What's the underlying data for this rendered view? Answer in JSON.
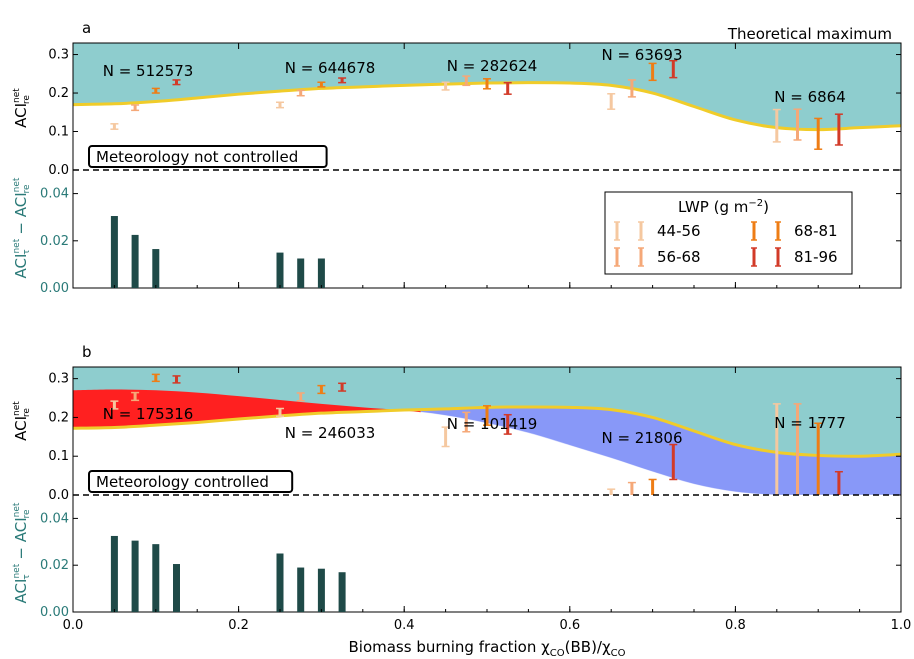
{
  "colors": {
    "teal_fill": "#8ecdce",
    "red_fill": "#ff2020",
    "blue_fill": "#8898f8",
    "theory_line": "#f0cc2a",
    "bars": "#1f4a48",
    "lower_axis_text": "#2a7a78",
    "lwp_colors": [
      "#f5c8a0",
      "#f5a878",
      "#ee7d15",
      "#d23a28"
    ]
  },
  "shared": {
    "xlabel": "Biomass burning fraction χ",
    "xlabel_sub1": "CO",
    "xlabel_mid": "(BB)/χ",
    "xlabel_sub2": "CO",
    "xticks": [
      "0.0",
      "0.2",
      "0.4",
      "0.6",
      "0.8",
      "1.0"
    ],
    "ylabel_top": "ACI",
    "ylabel_top_sup": "net",
    "ylabel_top_sub": "re",
    "ylabel_bottom_a": "ACI",
    "ylabel_bottom_a_sup": "net",
    "ylabel_bottom_a_sub": "τ",
    "ylabel_bottom_minus": " − ",
    "ylabel_bottom_b": "ACI",
    "ylabel_bottom_b_sup": "net",
    "ylabel_bottom_b_sub": "re"
  },
  "chart_data": [
    {
      "type": "errorbar",
      "panel_label": "a",
      "corner_text": "Theoretical maximum",
      "condition_label": "Meteorology not controlled",
      "top_ylim": [
        -0.035,
        0.33
      ],
      "top_yticks": [
        "0.0",
        "0.1",
        "0.2",
        "0.3"
      ],
      "theory_curve": {
        "x": [
          0,
          0.05,
          0.1,
          0.15,
          0.2,
          0.25,
          0.3,
          0.35,
          0.4,
          0.45,
          0.5,
          0.55,
          0.6,
          0.65,
          0.7,
          0.75,
          0.8,
          0.85,
          0.9,
          0.95,
          1.0
        ],
        "y": [
          0.17,
          0.172,
          0.178,
          0.187,
          0.197,
          0.205,
          0.212,
          0.216,
          0.22,
          0.223,
          0.226,
          0.227,
          0.226,
          0.22,
          0.2,
          0.165,
          0.13,
          0.11,
          0.105,
          0.11,
          0.115
        ]
      },
      "groups": [
        {
          "n_label": "N = 512573",
          "x": [
            0.05,
            0.075,
            0.1,
            0.125
          ],
          "y": [
            0.113,
            0.162,
            0.206,
            0.228
          ],
          "err": [
            0.007,
            0.007,
            0.006,
            0.006
          ]
        },
        {
          "n_label": "N = 644678",
          "x": [
            0.25,
            0.275,
            0.3,
            0.325
          ],
          "y": [
            0.169,
            0.2,
            0.222,
            0.233
          ],
          "err": [
            0.007,
            0.007,
            0.006,
            0.006
          ]
        },
        {
          "n_label": "N = 282624",
          "x": [
            0.45,
            0.475,
            0.5,
            0.525
          ],
          "y": [
            0.218,
            0.232,
            0.224,
            0.212
          ],
          "err": [
            0.01,
            0.012,
            0.013,
            0.015
          ]
        },
        {
          "n_label": "N = 63693",
          "x": [
            0.65,
            0.675,
            0.7,
            0.725
          ],
          "y": [
            0.178,
            0.212,
            0.255,
            0.262
          ],
          "err": [
            0.02,
            0.022,
            0.022,
            0.022
          ]
        },
        {
          "n_label": "N = 6864",
          "x": [
            0.85,
            0.875,
            0.9,
            0.925
          ],
          "y": [
            0.115,
            0.118,
            0.094,
            0.105
          ],
          "err": [
            0.042,
            0.04,
            0.04,
            0.04
          ]
        }
      ],
      "bottom_ylim": [
        0,
        0.05
      ],
      "bottom_yticks": [
        "0.00",
        "0.02",
        "0.04"
      ],
      "bottom_bars": {
        "x": [
          0.05,
          0.075,
          0.1,
          0.25,
          0.275,
          0.3
        ],
        "y": [
          0.0305,
          0.0225,
          0.0165,
          0.015,
          0.0125,
          0.0125
        ]
      },
      "legend": {
        "title": "LWP (g m",
        "title_sup": "−2",
        "title_end": ")",
        "entries": [
          "44-56",
          "56-68",
          "68-81",
          "81-96"
        ],
        "placement": "center-right"
      }
    },
    {
      "type": "errorbar",
      "panel_label": "b",
      "condition_label": "Meteorology controlled",
      "top_ylim": [
        -0.035,
        0.33
      ],
      "top_yticks": [
        "0.0",
        "0.1",
        "0.2",
        "0.3"
      ],
      "theory_curve": {
        "x": [
          0,
          0.05,
          0.1,
          0.15,
          0.2,
          0.25,
          0.3,
          0.35,
          0.4,
          0.45,
          0.5,
          0.55,
          0.6,
          0.65,
          0.7,
          0.75,
          0.8,
          0.85,
          0.9,
          0.95,
          1.0
        ],
        "y": [
          0.172,
          0.174,
          0.18,
          0.187,
          0.196,
          0.204,
          0.211,
          0.215,
          0.219,
          0.222,
          0.226,
          0.227,
          0.226,
          0.22,
          0.2,
          0.165,
          0.13,
          0.11,
          0.102,
          0.1,
          0.105
        ]
      },
      "lower_curve": {
        "x": [
          0,
          0.05,
          0.1,
          0.15,
          0.2,
          0.25,
          0.3,
          0.35,
          0.4,
          0.45,
          0.5,
          0.55,
          0.6,
          0.65,
          0.7,
          0.75,
          0.8,
          0.85,
          0.9,
          0.95,
          1.0
        ],
        "y": [
          0.27,
          0.272,
          0.27,
          0.264,
          0.255,
          0.245,
          0.235,
          0.226,
          0.218,
          0.205,
          0.185,
          0.16,
          0.128,
          0.095,
          0.06,
          0.028,
          0.008,
          0.0,
          0.0,
          0.0,
          0.0
        ]
      },
      "groups": [
        {
          "n_label": "N = 175316",
          "x": [
            0.05,
            0.075,
            0.1,
            0.125
          ],
          "y": [
            0.232,
            0.254,
            0.302,
            0.298
          ],
          "err": [
            0.01,
            0.01,
            0.009,
            0.009
          ]
        },
        {
          "n_label": "N = 246033",
          "x": [
            0.25,
            0.275,
            0.3,
            0.325
          ],
          "y": [
            0.213,
            0.253,
            0.272,
            0.278
          ],
          "err": [
            0.01,
            0.01,
            0.01,
            0.01
          ]
        },
        {
          "n_label": "N = 101419",
          "x": [
            0.45,
            0.475,
            0.5,
            0.525
          ],
          "y": [
            0.15,
            0.188,
            0.205,
            0.182
          ],
          "err": [
            0.025,
            0.025,
            0.025,
            0.025
          ]
        },
        {
          "n_label": "N = 21806",
          "x": [
            0.65,
            0.675,
            0.7,
            0.725
          ],
          "y": [
            -0.02,
            -0.003,
            0.0,
            0.085
          ],
          "err": [
            0.035,
            0.035,
            0.04,
            0.045
          ]
        },
        {
          "n_label": "N = 1777",
          "x": [
            0.85,
            0.875,
            0.9,
            0.925
          ],
          "y": [
            0.1,
            0.1,
            0.07,
            -0.1
          ],
          "err": [
            0.135,
            0.135,
            0.115,
            0.16
          ]
        }
      ],
      "bottom_ylim": [
        0,
        0.05
      ],
      "bottom_yticks": [
        "0.00",
        "0.02",
        "0.04"
      ],
      "bottom_bars": {
        "x": [
          0.05,
          0.075,
          0.1,
          0.125,
          0.25,
          0.275,
          0.3,
          0.325
        ],
        "y": [
          0.0325,
          0.0305,
          0.029,
          0.0205,
          0.025,
          0.019,
          0.0185,
          0.017
        ]
      }
    }
  ]
}
